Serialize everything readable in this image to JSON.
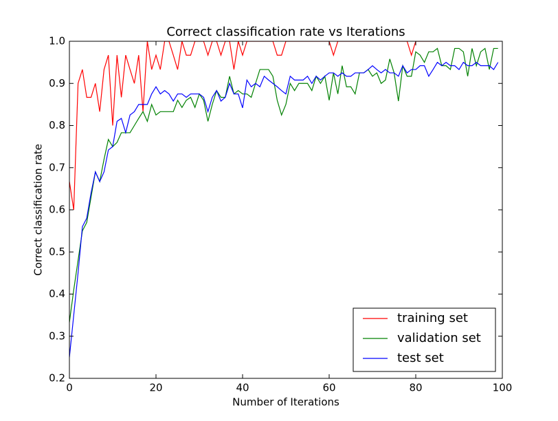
{
  "chart_data": {
    "type": "line",
    "title": "Correct classification rate vs Iterations",
    "xlabel": "Number of Iterations",
    "ylabel": "Correct classification rate",
    "x": [
      0,
      1,
      2,
      3,
      4,
      5,
      6,
      7,
      8,
      9,
      10,
      11,
      12,
      13,
      14,
      15,
      16,
      17,
      18,
      19,
      20,
      21,
      22,
      23,
      24,
      25,
      26,
      27,
      28,
      29,
      30,
      31,
      32,
      33,
      34,
      35,
      36,
      37,
      38,
      39,
      40,
      41,
      42,
      43,
      44,
      45,
      46,
      47,
      48,
      49,
      50,
      51,
      52,
      53,
      54,
      55,
      56,
      57,
      58,
      59,
      60,
      61,
      62,
      63,
      64,
      65,
      66,
      67,
      68,
      69,
      70,
      71,
      72,
      73,
      74,
      75,
      76,
      77,
      78,
      79,
      80,
      81,
      82,
      83,
      84,
      85,
      86,
      87,
      88,
      89,
      90,
      91,
      92,
      93,
      94,
      95,
      96,
      97,
      98,
      99
    ],
    "series": [
      {
        "name": "training set",
        "color": "#ff0000",
        "values": [
          0.667,
          0.6,
          0.9,
          0.933,
          0.867,
          0.867,
          0.9,
          0.833,
          0.933,
          0.967,
          0.8,
          0.967,
          0.867,
          0.967,
          0.933,
          0.9,
          0.967,
          0.833,
          1.0,
          0.933,
          0.967,
          0.933,
          1.0,
          1.0,
          0.967,
          0.933,
          1.0,
          0.967,
          0.967,
          1.0,
          1.0,
          1.0,
          0.967,
          1.0,
          1.0,
          0.967,
          1.0,
          1.0,
          0.933,
          1.0,
          0.967,
          1.0,
          1.0,
          1.0,
          1.0,
          1.0,
          1.0,
          1.0,
          0.967,
          0.967,
          1.0,
          1.0,
          1.0,
          1.0,
          1.0,
          1.0,
          1.0,
          1.0,
          1.0,
          1.0,
          1.0,
          0.967,
          1.0,
          1.0,
          1.0,
          1.0,
          1.0,
          1.0,
          1.0,
          1.0,
          1.0,
          1.0,
          1.0,
          1.0,
          1.0,
          1.0,
          1.0,
          1.0,
          1.0,
          0.967,
          1.0,
          1.0,
          1.0,
          1.0,
          1.0,
          1.0,
          1.0,
          1.0,
          1.0,
          1.0,
          1.0,
          1.0,
          1.0,
          1.0,
          1.0,
          1.0,
          1.0,
          1.0,
          1.0,
          1.0
        ]
      },
      {
        "name": "validation set",
        "color": "#008000",
        "values": [
          0.333,
          0.41,
          0.48,
          0.55,
          0.57,
          0.63,
          0.69,
          0.667,
          0.72,
          0.767,
          0.75,
          0.76,
          0.783,
          0.783,
          0.783,
          0.8,
          0.817,
          0.833,
          0.81,
          0.85,
          0.825,
          0.833,
          0.833,
          0.833,
          0.833,
          0.86,
          0.843,
          0.86,
          0.867,
          0.843,
          0.875,
          0.86,
          0.81,
          0.85,
          0.883,
          0.867,
          0.867,
          0.917,
          0.875,
          0.883,
          0.875,
          0.875,
          0.867,
          0.9,
          0.933,
          0.933,
          0.933,
          0.917,
          0.86,
          0.825,
          0.85,
          0.9,
          0.883,
          0.9,
          0.9,
          0.9,
          0.883,
          0.917,
          0.9,
          0.917,
          0.86,
          0.925,
          0.875,
          0.942,
          0.892,
          0.892,
          0.875,
          0.925,
          0.925,
          0.933,
          0.917,
          0.925,
          0.9,
          0.908,
          0.958,
          0.925,
          0.858,
          0.942,
          0.917,
          0.917,
          0.975,
          0.967,
          0.95,
          0.975,
          0.975,
          0.983,
          0.942,
          0.942,
          0.933,
          0.983,
          0.983,
          0.975,
          0.917,
          0.983,
          0.942,
          0.975,
          0.983,
          0.933,
          0.983,
          0.983
        ]
      },
      {
        "name": "test set",
        "color": "#0000ff",
        "values": [
          0.25,
          0.35,
          0.45,
          0.56,
          0.58,
          0.64,
          0.69,
          0.667,
          0.69,
          0.742,
          0.75,
          0.81,
          0.817,
          0.783,
          0.825,
          0.833,
          0.85,
          0.85,
          0.85,
          0.875,
          0.892,
          0.875,
          0.883,
          0.875,
          0.858,
          0.875,
          0.875,
          0.867,
          0.875,
          0.875,
          0.875,
          0.867,
          0.833,
          0.867,
          0.883,
          0.858,
          0.867,
          0.9,
          0.875,
          0.875,
          0.842,
          0.908,
          0.892,
          0.9,
          0.892,
          0.917,
          0.908,
          0.9,
          0.892,
          0.883,
          0.875,
          0.917,
          0.908,
          0.908,
          0.908,
          0.917,
          0.9,
          0.917,
          0.908,
          0.917,
          0.925,
          0.925,
          0.917,
          0.925,
          0.917,
          0.917,
          0.925,
          0.925,
          0.925,
          0.933,
          0.942,
          0.933,
          0.925,
          0.933,
          0.925,
          0.925,
          0.917,
          0.942,
          0.925,
          0.933,
          0.933,
          0.942,
          0.942,
          0.917,
          0.933,
          0.95,
          0.942,
          0.95,
          0.942,
          0.942,
          0.933,
          0.95,
          0.942,
          0.942,
          0.95,
          0.942,
          0.942,
          0.942,
          0.933,
          0.95
        ]
      }
    ],
    "xlim": [
      0,
      100
    ],
    "xticks": [
      0,
      20,
      40,
      60,
      80,
      100
    ],
    "ylim": [
      0.2,
      1.0
    ],
    "yticks": [
      0.2,
      0.3,
      0.4,
      0.5,
      0.6,
      0.7,
      0.8,
      0.9,
      {
        "value": 1.0,
        "label": "1.0"
      }
    ],
    "legend": "lower right"
  }
}
